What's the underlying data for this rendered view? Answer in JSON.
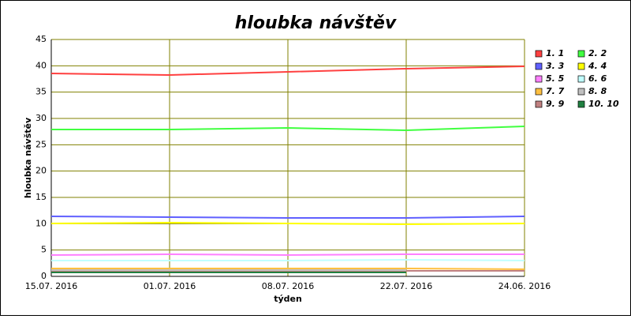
{
  "chart_data": {
    "type": "line",
    "title": "hloubka návštěv",
    "x_label": "týden",
    "y_label": "hloubka návštěv",
    "categories": [
      "15.07. 2016",
      "01.07. 2016",
      "08.07. 2016",
      "22.07. 2016",
      "24.06. 2016"
    ],
    "ylim": [
      0,
      45
    ],
    "yticks": [
      0,
      5,
      10,
      15,
      20,
      25,
      30,
      35,
      40,
      45
    ],
    "grid": true,
    "legend": "right",
    "series": [
      {
        "name": "1. 1",
        "color": "#ff4040",
        "values": [
          38.55,
          38.25,
          38.85,
          39.45,
          39.9
        ]
      },
      {
        "name": "2. 2",
        "color": "#40ff40",
        "values": [
          27.9,
          27.9,
          28.2,
          27.75,
          28.5
        ]
      },
      {
        "name": "3. 3",
        "color": "#6060ff",
        "values": [
          11.4,
          11.25,
          11.1,
          11.1,
          11.4
        ]
      },
      {
        "name": "4. 4",
        "color": "#ffff00",
        "values": [
          10.05,
          10.2,
          10.05,
          9.9,
          10.05
        ]
      },
      {
        "name": "5. 5",
        "color": "#ff80ff",
        "values": [
          4.05,
          4.2,
          4.05,
          4.2,
          4.2
        ]
      },
      {
        "name": "6. 6",
        "color": "#c0ffff",
        "values": [
          3.0,
          3.0,
          3.0,
          3.15,
          3.0
        ]
      },
      {
        "name": "7. 7",
        "color": "#ffc040",
        "values": [
          1.5,
          1.5,
          1.5,
          1.5,
          1.35
        ]
      },
      {
        "name": "8. 8",
        "color": "#c0c0c0",
        "values": [
          1.2,
          1.2,
          1.2,
          1.2,
          null
        ]
      },
      {
        "name": "9. 9",
        "color": "#c08080",
        "values": [
          1.05,
          1.05,
          1.05,
          1.05,
          1.05
        ]
      },
      {
        "name": "10. 10",
        "color": "#208040",
        "values": [
          0.75,
          0.75,
          0.75,
          0.75,
          null
        ]
      }
    ]
  }
}
